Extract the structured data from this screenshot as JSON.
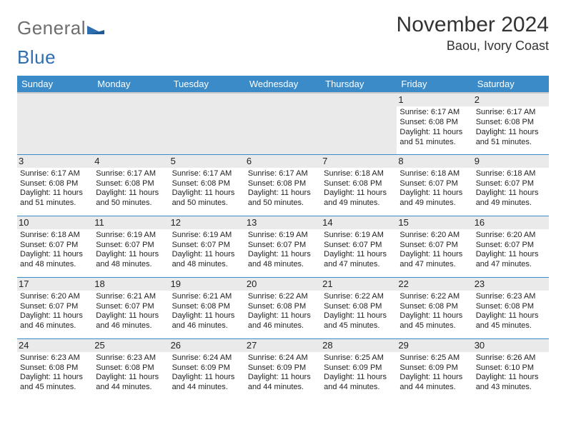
{
  "logo": {
    "word1": "General",
    "word2": "Blue"
  },
  "title": "November 2024",
  "location": "Baou, Ivory Coast",
  "colors": {
    "header_bg": "#3b8bc9",
    "header_text": "#ffffff",
    "row_divider": "#3b8bc9",
    "daynum_bg": "#eaeaea",
    "logo_gray": "#6e6e6e",
    "logo_blue": "#2f6fb0"
  },
  "weekdays": [
    "Sunday",
    "Monday",
    "Tuesday",
    "Wednesday",
    "Thursday",
    "Friday",
    "Saturday"
  ],
  "weeks": [
    [
      null,
      null,
      null,
      null,
      null,
      {
        "n": "1",
        "sr": "6:17 AM",
        "ss": "6:08 PM",
        "dl": "11 hours and 51 minutes."
      },
      {
        "n": "2",
        "sr": "6:17 AM",
        "ss": "6:08 PM",
        "dl": "11 hours and 51 minutes."
      }
    ],
    [
      {
        "n": "3",
        "sr": "6:17 AM",
        "ss": "6:08 PM",
        "dl": "11 hours and 51 minutes."
      },
      {
        "n": "4",
        "sr": "6:17 AM",
        "ss": "6:08 PM",
        "dl": "11 hours and 50 minutes."
      },
      {
        "n": "5",
        "sr": "6:17 AM",
        "ss": "6:08 PM",
        "dl": "11 hours and 50 minutes."
      },
      {
        "n": "6",
        "sr": "6:17 AM",
        "ss": "6:08 PM",
        "dl": "11 hours and 50 minutes."
      },
      {
        "n": "7",
        "sr": "6:18 AM",
        "ss": "6:08 PM",
        "dl": "11 hours and 49 minutes."
      },
      {
        "n": "8",
        "sr": "6:18 AM",
        "ss": "6:07 PM",
        "dl": "11 hours and 49 minutes."
      },
      {
        "n": "9",
        "sr": "6:18 AM",
        "ss": "6:07 PM",
        "dl": "11 hours and 49 minutes."
      }
    ],
    [
      {
        "n": "10",
        "sr": "6:18 AM",
        "ss": "6:07 PM",
        "dl": "11 hours and 48 minutes."
      },
      {
        "n": "11",
        "sr": "6:19 AM",
        "ss": "6:07 PM",
        "dl": "11 hours and 48 minutes."
      },
      {
        "n": "12",
        "sr": "6:19 AM",
        "ss": "6:07 PM",
        "dl": "11 hours and 48 minutes."
      },
      {
        "n": "13",
        "sr": "6:19 AM",
        "ss": "6:07 PM",
        "dl": "11 hours and 48 minutes."
      },
      {
        "n": "14",
        "sr": "6:19 AM",
        "ss": "6:07 PM",
        "dl": "11 hours and 47 minutes."
      },
      {
        "n": "15",
        "sr": "6:20 AM",
        "ss": "6:07 PM",
        "dl": "11 hours and 47 minutes."
      },
      {
        "n": "16",
        "sr": "6:20 AM",
        "ss": "6:07 PM",
        "dl": "11 hours and 47 minutes."
      }
    ],
    [
      {
        "n": "17",
        "sr": "6:20 AM",
        "ss": "6:07 PM",
        "dl": "11 hours and 46 minutes."
      },
      {
        "n": "18",
        "sr": "6:21 AM",
        "ss": "6:07 PM",
        "dl": "11 hours and 46 minutes."
      },
      {
        "n": "19",
        "sr": "6:21 AM",
        "ss": "6:08 PM",
        "dl": "11 hours and 46 minutes."
      },
      {
        "n": "20",
        "sr": "6:22 AM",
        "ss": "6:08 PM",
        "dl": "11 hours and 46 minutes."
      },
      {
        "n": "21",
        "sr": "6:22 AM",
        "ss": "6:08 PM",
        "dl": "11 hours and 45 minutes."
      },
      {
        "n": "22",
        "sr": "6:22 AM",
        "ss": "6:08 PM",
        "dl": "11 hours and 45 minutes."
      },
      {
        "n": "23",
        "sr": "6:23 AM",
        "ss": "6:08 PM",
        "dl": "11 hours and 45 minutes."
      }
    ],
    [
      {
        "n": "24",
        "sr": "6:23 AM",
        "ss": "6:08 PM",
        "dl": "11 hours and 45 minutes."
      },
      {
        "n": "25",
        "sr": "6:23 AM",
        "ss": "6:08 PM",
        "dl": "11 hours and 44 minutes."
      },
      {
        "n": "26",
        "sr": "6:24 AM",
        "ss": "6:09 PM",
        "dl": "11 hours and 44 minutes."
      },
      {
        "n": "27",
        "sr": "6:24 AM",
        "ss": "6:09 PM",
        "dl": "11 hours and 44 minutes."
      },
      {
        "n": "28",
        "sr": "6:25 AM",
        "ss": "6:09 PM",
        "dl": "11 hours and 44 minutes."
      },
      {
        "n": "29",
        "sr": "6:25 AM",
        "ss": "6:09 PM",
        "dl": "11 hours and 44 minutes."
      },
      {
        "n": "30",
        "sr": "6:26 AM",
        "ss": "6:10 PM",
        "dl": "11 hours and 43 minutes."
      }
    ]
  ],
  "labels": {
    "sunrise_prefix": "Sunrise: ",
    "sunset_prefix": "Sunset: ",
    "daylight_prefix": "Daylight: "
  }
}
